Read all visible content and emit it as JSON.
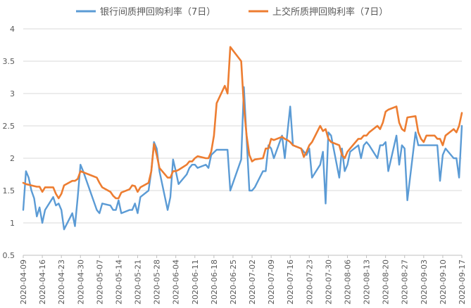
{
  "chart_data": {
    "type": "line",
    "title": "",
    "xlabel": "",
    "ylabel": "",
    "ylim": [
      0.5,
      4
    ],
    "yticks": [
      "0.5",
      "1",
      "1.5",
      "2",
      "2.5",
      "3",
      "3.5",
      "4"
    ],
    "x_start": "2020-04-09",
    "x_end": "2020-09-17",
    "xtick_labels": [
      "2020-04-09",
      "2020-04-16",
      "2020-04-23",
      "2020-04-30",
      "2020-05-07",
      "2020-05-14",
      "2020-05-21",
      "2020-05-28",
      "2020-06-04",
      "2020-06-11",
      "2020-06-18",
      "2020-06-25",
      "2020-07-02",
      "2020-07-09",
      "2020-07-16",
      "2020-07-23",
      "2020-07-30",
      "2020-08-06",
      "2020-08-13",
      "2020-08-20",
      "2020-08-27",
      "2020-09-03",
      "2020-09-10",
      "2020-09-17"
    ],
    "grid": "horizontal",
    "legend_position": "top",
    "series": [
      {
        "name": "银行间质押回购利率（7日）",
        "color": "#5B9BD5",
        "points": [
          [
            "2020-04-09",
            1.2
          ],
          [
            "2020-04-10",
            1.8
          ],
          [
            "2020-04-11",
            1.7
          ],
          [
            "2020-04-12",
            1.5
          ],
          [
            "2020-04-13",
            1.38
          ],
          [
            "2020-04-14",
            1.1
          ],
          [
            "2020-04-15",
            1.24
          ],
          [
            "2020-04-16",
            1.0
          ],
          [
            "2020-04-17",
            1.2
          ],
          [
            "2020-04-20",
            1.4
          ],
          [
            "2020-04-21",
            1.27
          ],
          [
            "2020-04-22",
            1.3
          ],
          [
            "2020-04-23",
            1.2
          ],
          [
            "2020-04-24",
            0.9
          ],
          [
            "2020-04-27",
            1.15
          ],
          [
            "2020-04-28",
            0.95
          ],
          [
            "2020-04-29",
            1.4
          ],
          [
            "2020-04-30",
            1.9
          ],
          [
            "2020-05-01",
            1.8
          ],
          [
            "2020-05-06",
            1.2
          ],
          [
            "2020-05-07",
            1.15
          ],
          [
            "2020-05-08",
            1.3
          ],
          [
            "2020-05-11",
            1.27
          ],
          [
            "2020-05-12",
            1.2
          ],
          [
            "2020-05-13",
            1.2
          ],
          [
            "2020-05-14",
            1.35
          ],
          [
            "2020-05-15",
            1.15
          ],
          [
            "2020-05-18",
            1.2
          ],
          [
            "2020-05-19",
            1.2
          ],
          [
            "2020-05-20",
            1.3
          ],
          [
            "2020-05-21",
            1.15
          ],
          [
            "2020-05-22",
            1.4
          ],
          [
            "2020-05-25",
            1.5
          ],
          [
            "2020-05-26",
            1.8
          ],
          [
            "2020-05-27",
            2.25
          ],
          [
            "2020-05-28",
            2.15
          ],
          [
            "2020-05-29",
            1.8
          ],
          [
            "2020-06-01",
            1.2
          ],
          [
            "2020-06-02",
            1.4
          ],
          [
            "2020-06-03",
            1.98
          ],
          [
            "2020-06-04",
            1.8
          ],
          [
            "2020-06-05",
            1.6
          ],
          [
            "2020-06-08",
            1.75
          ],
          [
            "2020-06-09",
            1.85
          ],
          [
            "2020-06-10",
            1.9
          ],
          [
            "2020-06-11",
            1.9
          ],
          [
            "2020-06-12",
            1.85
          ],
          [
            "2020-06-15",
            1.9
          ],
          [
            "2020-06-16",
            1.85
          ],
          [
            "2020-06-17",
            2.05
          ],
          [
            "2020-06-19",
            2.13
          ],
          [
            "2020-06-22",
            2.13
          ],
          [
            "2020-06-23",
            2.13
          ],
          [
            "2020-06-24",
            1.5
          ],
          [
            "2020-06-28",
            1.98
          ],
          [
            "2020-06-29",
            3.1
          ],
          [
            "2020-06-30",
            2.3
          ],
          [
            "2020-07-01",
            1.5
          ],
          [
            "2020-07-02",
            1.5
          ],
          [
            "2020-07-03",
            1.55
          ],
          [
            "2020-07-06",
            1.8
          ],
          [
            "2020-07-07",
            1.8
          ],
          [
            "2020-07-08",
            2.2
          ],
          [
            "2020-07-09",
            2.15
          ],
          [
            "2020-07-10",
            2.0
          ],
          [
            "2020-07-13",
            2.35
          ],
          [
            "2020-07-14",
            2.0
          ],
          [
            "2020-07-15",
            2.4
          ],
          [
            "2020-07-16",
            2.8
          ],
          [
            "2020-07-17",
            2.2
          ],
          [
            "2020-07-20",
            2.15
          ],
          [
            "2020-07-21",
            2.1
          ],
          [
            "2020-07-22",
            2.05
          ],
          [
            "2020-07-23",
            2.15
          ],
          [
            "2020-07-24",
            1.7
          ],
          [
            "2020-07-27",
            1.9
          ],
          [
            "2020-07-28",
            2.1
          ],
          [
            "2020-07-29",
            1.3
          ],
          [
            "2020-07-30",
            2.4
          ],
          [
            "2020-07-31",
            2.35
          ],
          [
            "2020-08-03",
            1.7
          ],
          [
            "2020-08-04",
            2.15
          ],
          [
            "2020-08-05",
            1.8
          ],
          [
            "2020-08-06",
            1.9
          ],
          [
            "2020-08-07",
            2.1
          ],
          [
            "2020-08-10",
            2.2
          ],
          [
            "2020-08-11",
            2.0
          ],
          [
            "2020-08-12",
            2.2
          ],
          [
            "2020-08-13",
            2.25
          ],
          [
            "2020-08-14",
            2.2
          ],
          [
            "2020-08-17",
            2.0
          ],
          [
            "2020-08-18",
            2.2
          ],
          [
            "2020-08-19",
            2.2
          ],
          [
            "2020-08-20",
            2.25
          ],
          [
            "2020-08-21",
            1.8
          ],
          [
            "2020-08-24",
            2.35
          ],
          [
            "2020-08-25",
            1.9
          ],
          [
            "2020-08-26",
            2.2
          ],
          [
            "2020-08-27",
            2.15
          ],
          [
            "2020-08-28",
            1.35
          ],
          [
            "2020-08-31",
            2.4
          ],
          [
            "2020-09-01",
            2.2
          ],
          [
            "2020-09-02",
            2.2
          ],
          [
            "2020-09-07",
            2.2
          ],
          [
            "2020-09-08",
            2.2
          ],
          [
            "2020-09-09",
            1.65
          ],
          [
            "2020-09-10",
            2.05
          ],
          [
            "2020-09-11",
            2.15
          ],
          [
            "2020-09-14",
            2.0
          ],
          [
            "2020-09-15",
            2.0
          ],
          [
            "2020-09-16",
            1.7
          ],
          [
            "2020-09-17",
            2.5
          ]
        ]
      },
      {
        "name": "上交所质押回购利率（7日）",
        "color": "#ED7D31",
        "points": [
          [
            "2020-04-09",
            1.62
          ],
          [
            "2020-04-10",
            1.6
          ],
          [
            "2020-04-13",
            1.57
          ],
          [
            "2020-04-14",
            1.56
          ],
          [
            "2020-04-15",
            1.56
          ],
          [
            "2020-04-16",
            1.48
          ],
          [
            "2020-04-17",
            1.55
          ],
          [
            "2020-04-20",
            1.55
          ],
          [
            "2020-04-21",
            1.45
          ],
          [
            "2020-04-22",
            1.38
          ],
          [
            "2020-04-23",
            1.45
          ],
          [
            "2020-04-24",
            1.58
          ],
          [
            "2020-04-27",
            1.65
          ],
          [
            "2020-04-28",
            1.65
          ],
          [
            "2020-04-29",
            1.68
          ],
          [
            "2020-04-30",
            1.8
          ],
          [
            "2020-05-06",
            1.7
          ],
          [
            "2020-05-07",
            1.62
          ],
          [
            "2020-05-08",
            1.55
          ],
          [
            "2020-05-11",
            1.48
          ],
          [
            "2020-05-12",
            1.42
          ],
          [
            "2020-05-13",
            1.38
          ],
          [
            "2020-05-14",
            1.38
          ],
          [
            "2020-05-15",
            1.47
          ],
          [
            "2020-05-18",
            1.52
          ],
          [
            "2020-05-19",
            1.58
          ],
          [
            "2020-05-20",
            1.57
          ],
          [
            "2020-05-21",
            1.48
          ],
          [
            "2020-05-22",
            1.55
          ],
          [
            "2020-05-25",
            1.62
          ],
          [
            "2020-05-26",
            1.8
          ],
          [
            "2020-05-27",
            2.22
          ],
          [
            "2020-05-28",
            2.05
          ],
          [
            "2020-05-29",
            1.85
          ],
          [
            "2020-06-01",
            1.7
          ],
          [
            "2020-06-02",
            1.7
          ],
          [
            "2020-06-03",
            1.8
          ],
          [
            "2020-06-04",
            1.8
          ],
          [
            "2020-06-05",
            1.82
          ],
          [
            "2020-06-08",
            1.9
          ],
          [
            "2020-06-09",
            1.95
          ],
          [
            "2020-06-10",
            1.95
          ],
          [
            "2020-06-11",
            2.0
          ],
          [
            "2020-06-12",
            2.03
          ],
          [
            "2020-06-15",
            2.0
          ],
          [
            "2020-06-16",
            2.0
          ],
          [
            "2020-06-17",
            2.1
          ],
          [
            "2020-06-18",
            2.35
          ],
          [
            "2020-06-19",
            2.85
          ],
          [
            "2020-06-22",
            3.12
          ],
          [
            "2020-06-23",
            3.0
          ],
          [
            "2020-06-24",
            3.72
          ],
          [
            "2020-06-28",
            3.5
          ],
          [
            "2020-06-29",
            2.8
          ],
          [
            "2020-06-30",
            2.35
          ],
          [
            "2020-07-01",
            2.05
          ],
          [
            "2020-07-02",
            1.95
          ],
          [
            "2020-07-03",
            1.98
          ],
          [
            "2020-07-06",
            2.0
          ],
          [
            "2020-07-07",
            2.15
          ],
          [
            "2020-07-08",
            2.15
          ],
          [
            "2020-07-09",
            2.3
          ],
          [
            "2020-07-10",
            2.28
          ],
          [
            "2020-07-13",
            2.33
          ],
          [
            "2020-07-14",
            2.3
          ],
          [
            "2020-07-15",
            2.28
          ],
          [
            "2020-07-16",
            2.25
          ],
          [
            "2020-07-17",
            2.2
          ],
          [
            "2020-07-20",
            2.15
          ],
          [
            "2020-07-21",
            2.02
          ],
          [
            "2020-07-22",
            2.1
          ],
          [
            "2020-07-23",
            2.2
          ],
          [
            "2020-07-24",
            2.25
          ],
          [
            "2020-07-27",
            2.5
          ],
          [
            "2020-07-28",
            2.42
          ],
          [
            "2020-07-29",
            2.45
          ],
          [
            "2020-07-30",
            2.3
          ],
          [
            "2020-07-31",
            2.25
          ],
          [
            "2020-08-03",
            2.2
          ],
          [
            "2020-08-04",
            2.05
          ],
          [
            "2020-08-05",
            2.0
          ],
          [
            "2020-08-06",
            2.1
          ],
          [
            "2020-08-07",
            2.15
          ],
          [
            "2020-08-10",
            2.3
          ],
          [
            "2020-08-11",
            2.3
          ],
          [
            "2020-08-12",
            2.35
          ],
          [
            "2020-08-13",
            2.35
          ],
          [
            "2020-08-14",
            2.4
          ],
          [
            "2020-08-17",
            2.5
          ],
          [
            "2020-08-18",
            2.45
          ],
          [
            "2020-08-19",
            2.55
          ],
          [
            "2020-08-20",
            2.72
          ],
          [
            "2020-08-21",
            2.75
          ],
          [
            "2020-08-24",
            2.8
          ],
          [
            "2020-08-25",
            2.55
          ],
          [
            "2020-08-26",
            2.45
          ],
          [
            "2020-08-27",
            2.42
          ],
          [
            "2020-08-28",
            2.63
          ],
          [
            "2020-08-31",
            2.65
          ],
          [
            "2020-09-01",
            2.4
          ],
          [
            "2020-09-02",
            2.3
          ],
          [
            "2020-09-03",
            2.25
          ],
          [
            "2020-09-04",
            2.35
          ],
          [
            "2020-09-07",
            2.35
          ],
          [
            "2020-09-08",
            2.3
          ],
          [
            "2020-09-09",
            2.3
          ],
          [
            "2020-09-10",
            2.2
          ],
          [
            "2020-09-11",
            2.35
          ],
          [
            "2020-09-14",
            2.45
          ],
          [
            "2020-09-15",
            2.4
          ],
          [
            "2020-09-16",
            2.5
          ],
          [
            "2020-09-17",
            2.7
          ]
        ]
      }
    ]
  }
}
